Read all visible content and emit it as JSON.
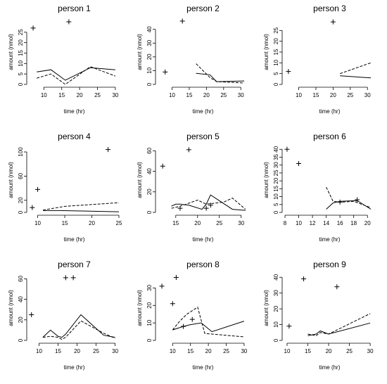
{
  "chart_data": [
    {
      "type": "line",
      "title": "person 1",
      "xlabel": "time (hr)",
      "ylabel": "amount (nmol)",
      "xlim": [
        6,
        31
      ],
      "ylim": [
        0,
        31
      ],
      "xticks": [
        10,
        15,
        20,
        25,
        30
      ],
      "yticks": [
        0,
        5,
        10,
        15,
        20,
        25
      ],
      "series": [
        {
          "style": "solid",
          "x": [
            8,
            12,
            16,
            23,
            30
          ],
          "y": [
            6,
            7,
            2,
            8,
            7
          ]
        },
        {
          "style": "dashed",
          "x": [
            8,
            12,
            16,
            23,
            30
          ],
          "y": [
            3,
            5,
            0,
            8.5,
            4
          ]
        },
        {
          "style": "cross",
          "x": [
            7,
            17
          ],
          "y": [
            27,
            30
          ]
        }
      ]
    },
    {
      "type": "line",
      "title": "person 2",
      "xlabel": "time (hr)",
      "ylabel": "amount (nmol)",
      "xlim": [
        6,
        32
      ],
      "ylim": [
        0,
        47
      ],
      "xticks": [
        10,
        15,
        20,
        25,
        30
      ],
      "yticks": [
        0,
        10,
        20,
        30,
        40
      ],
      "series": [
        {
          "style": "solid",
          "x": [
            17,
            21,
            23,
            31
          ],
          "y": [
            8,
            7,
            2,
            2.5
          ]
        },
        {
          "style": "dashed",
          "x": [
            17,
            21,
            23,
            31
          ],
          "y": [
            15,
            5,
            2,
            1
          ]
        },
        {
          "style": "cross",
          "x": [
            8,
            13
          ],
          "y": [
            9,
            46
          ]
        }
      ]
    },
    {
      "type": "line",
      "title": "person 3",
      "xlabel": "time (hr)",
      "ylabel": "amount (nmol)",
      "xlim": [
        6,
        32
      ],
      "ylim": [
        0,
        30
      ],
      "xticks": [
        10,
        15,
        20,
        25,
        30
      ],
      "yticks": [
        0,
        5,
        10,
        15,
        20,
        25
      ],
      "series": [
        {
          "style": "solid",
          "x": [
            22,
            31
          ],
          "y": [
            4,
            3
          ]
        },
        {
          "style": "dashed",
          "x": [
            22,
            31
          ],
          "y": [
            5,
            10
          ]
        },
        {
          "style": "cross",
          "x": [
            7,
            20
          ],
          "y": [
            6,
            29
          ]
        }
      ]
    },
    {
      "type": "line",
      "title": "person 4",
      "xlabel": "time (hr)",
      "ylabel": "amount (nmol)",
      "xlim": [
        8.5,
        25
      ],
      "ylim": [
        0,
        107
      ],
      "xticks": [
        10,
        15,
        20,
        25
      ],
      "yticks": [
        0,
        20,
        60,
        100
      ],
      "series": [
        {
          "style": "solid",
          "x": [
            11,
            14,
            25
          ],
          "y": [
            3,
            3,
            1
          ]
        },
        {
          "style": "dashed",
          "x": [
            11,
            15,
            25
          ],
          "y": [
            4,
            10,
            16
          ]
        },
        {
          "style": "cross",
          "x": [
            9,
            10,
            23
          ],
          "y": [
            8,
            38,
            104
          ]
        }
      ]
    },
    {
      "type": "line",
      "title": "person 5",
      "xlabel": "time (hr)",
      "ylabel": "amount (nmol)",
      "xlim": [
        11,
        31.5
      ],
      "ylim": [
        0,
        63
      ],
      "xticks": [
        15,
        20,
        25,
        30
      ],
      "yticks": [
        0,
        20,
        40,
        60
      ],
      "series": [
        {
          "style": "solid",
          "x": [
            14,
            15,
            16,
            18,
            21,
            22,
            23,
            28,
            31
          ],
          "y": [
            6,
            8,
            8,
            7,
            3,
            8,
            17,
            3,
            2
          ]
        },
        {
          "style": "dashed",
          "x": [
            14,
            16,
            18,
            20,
            22,
            26,
            28,
            31
          ],
          "y": [
            4,
            6,
            9,
            12,
            8,
            10,
            14,
            3
          ]
        },
        {
          "style": "cross",
          "x": [
            12,
            16,
            18,
            22,
            23
          ],
          "y": [
            45,
            4,
            61,
            4,
            7
          ]
        }
      ]
    },
    {
      "type": "line",
      "title": "person 6",
      "xlabel": "time (hr)",
      "ylabel": "amount (nmol)",
      "xlim": [
        8,
        21
      ],
      "ylim": [
        0,
        41
      ],
      "xticks": [
        8,
        10,
        12,
        14,
        16,
        18,
        20
      ],
      "yticks": [
        0,
        5,
        10,
        15,
        20,
        25,
        30,
        35,
        40
      ],
      "series": [
        {
          "style": "solid",
          "x": [
            14,
            15,
            16,
            18.5,
            20.5
          ],
          "y": [
            2,
            6,
            7,
            7.5,
            2
          ]
        },
        {
          "style": "dashed",
          "x": [
            14,
            15,
            16,
            18,
            20.5
          ],
          "y": [
            16,
            7,
            6.5,
            7,
            3
          ]
        },
        {
          "style": "cross",
          "x": [
            8.3,
            10,
            16,
            18.5
          ],
          "y": [
            40,
            31,
            6.5,
            8
          ]
        }
      ]
    },
    {
      "type": "line",
      "title": "person 7",
      "xlabel": "time (hr)",
      "ylabel": "amount (nmol)",
      "xlim": [
        7.5,
        31
      ],
      "ylim": [
        0,
        63
      ],
      "xticks": [
        10,
        15,
        20,
        25,
        30
      ],
      "yticks": [
        0,
        20,
        40,
        60
      ],
      "series": [
        {
          "style": "solid",
          "x": [
            11,
            13,
            15,
            16,
            17,
            21,
            27,
            30
          ],
          "y": [
            3,
            10,
            4,
            3,
            6,
            25,
            5,
            3
          ]
        },
        {
          "style": "dashed",
          "x": [
            11,
            13,
            15,
            16,
            17,
            21,
            27,
            30
          ],
          "y": [
            3,
            4,
            3,
            1,
            3,
            19,
            7,
            2
          ]
        },
        {
          "style": "cross",
          "x": [
            8,
            17,
            19
          ],
          "y": [
            25,
            61,
            61
          ]
        }
      ]
    },
    {
      "type": "line",
      "title": "person 8",
      "xlabel": "time (hr)",
      "ylabel": "amount (nmol)",
      "xlim": [
        6,
        31
      ],
      "ylim": [
        0,
        37
      ],
      "xticks": [
        10,
        15,
        20,
        25,
        30
      ],
      "yticks": [
        0,
        10,
        20,
        30
      ],
      "series": [
        {
          "style": "solid",
          "x": [
            10,
            13,
            15,
            18,
            21,
            30
          ],
          "y": [
            6,
            8,
            9,
            10,
            5,
            11
          ]
        },
        {
          "style": "dashed",
          "x": [
            10,
            12,
            14,
            17,
            19,
            30
          ],
          "y": [
            6,
            11,
            15,
            19,
            4,
            2
          ]
        },
        {
          "style": "cross",
          "x": [
            7,
            10,
            11,
            13,
            15.5
          ],
          "y": [
            31,
            21,
            36,
            8,
            12
          ]
        }
      ]
    },
    {
      "type": "line",
      "title": "person 9",
      "xlabel": "time (hr)",
      "ylabel": "amount (nmol)",
      "xlim": [
        9.5,
        31
      ],
      "ylim": [
        0,
        41
      ],
      "xticks": [
        10,
        15,
        20,
        25,
        30
      ],
      "yticks": [
        0,
        10,
        20,
        30,
        40
      ],
      "series": [
        {
          "style": "solid",
          "x": [
            15,
            17,
            18,
            20,
            30
          ],
          "y": [
            3,
            4,
            6,
            4,
            11
          ]
        },
        {
          "style": "dashed",
          "x": [
            15,
            17,
            18,
            20,
            30
          ],
          "y": [
            4,
            3,
            5,
            4,
            17
          ]
        },
        {
          "style": "cross",
          "x": [
            10.5,
            14,
            22
          ],
          "y": [
            9,
            39,
            34
          ]
        }
      ]
    }
  ]
}
